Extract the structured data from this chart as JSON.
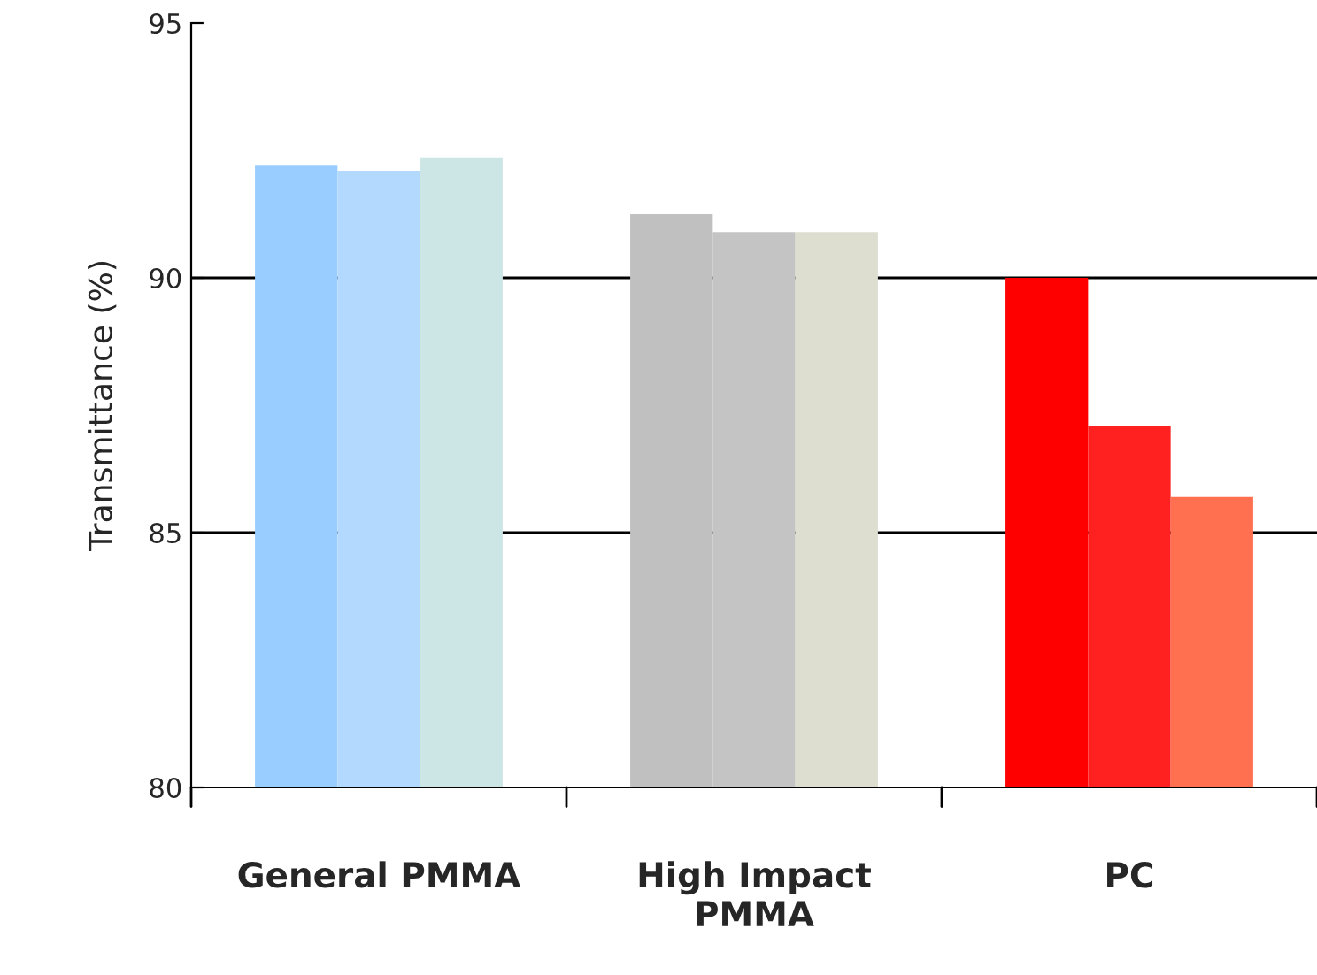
{
  "chart_data": {
    "type": "bar",
    "ylabel": "Transmittance (%)",
    "categories": [
      "General PMMA",
      "High Impact\nPMMA",
      "PC"
    ],
    "series": [
      {
        "colors": [
          "#99ccff",
          "#c0c0c0",
          "#ff0000"
        ],
        "values": [
          92.2,
          91.25,
          90.0
        ]
      },
      {
        "colors": [
          "#b3d9ff",
          "#c4c4c4",
          "#ff2020"
        ],
        "values": [
          92.1,
          90.9,
          87.1
        ]
      },
      {
        "colors": [
          "#cce5e5",
          "#deded0",
          "#ff7050"
        ],
        "values": [
          92.35,
          90.9,
          85.7
        ]
      }
    ],
    "ylim": [
      80,
      95
    ],
    "yticks": [
      80,
      85,
      90,
      95
    ],
    "grid": "y"
  }
}
